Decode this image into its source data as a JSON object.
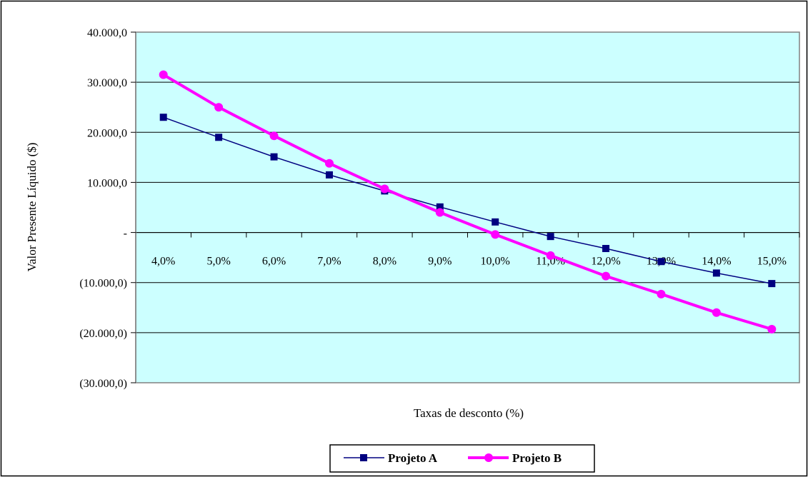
{
  "chart_data": {
    "type": "line",
    "title": "",
    "xlabel": "Taxas de desconto (%)",
    "ylabel": "Valor Presente Líquido ($)",
    "categories": [
      "4,0%",
      "5,0%",
      "6,0%",
      "7,0%",
      "8,0%",
      "9,0%",
      "10,0%",
      "11,0%",
      "12,0%",
      "13,0%",
      "14,0%",
      "15,0%"
    ],
    "y_ticks": [
      40000,
      30000,
      20000,
      10000,
      0,
      -10000,
      -20000,
      -30000
    ],
    "y_tick_labels": [
      "40.000,0",
      "30.000,0",
      "20.000,0",
      "10.000,0",
      "-",
      "(10.000,0)",
      "(20.000,0)",
      "(30.000,0)"
    ],
    "ylim": [
      -30000,
      40000
    ],
    "grid": "horizontal",
    "legend_position": "bottom",
    "colors": {
      "plot_background": "#ccffff",
      "series_a": "#000080",
      "series_b": "#ff00ff"
    },
    "series": [
      {
        "name": "Projeto A",
        "marker": "square",
        "values": [
          23000,
          19000,
          15100,
          11500,
          8300,
          5100,
          2100,
          -800,
          -3200,
          -5800,
          -8100,
          -10200
        ]
      },
      {
        "name": "Projeto B",
        "marker": "circle",
        "values": [
          31500,
          25000,
          19300,
          13800,
          8700,
          4000,
          -400,
          -4600,
          -8700,
          -12300,
          -16000,
          -19300
        ]
      }
    ]
  }
}
